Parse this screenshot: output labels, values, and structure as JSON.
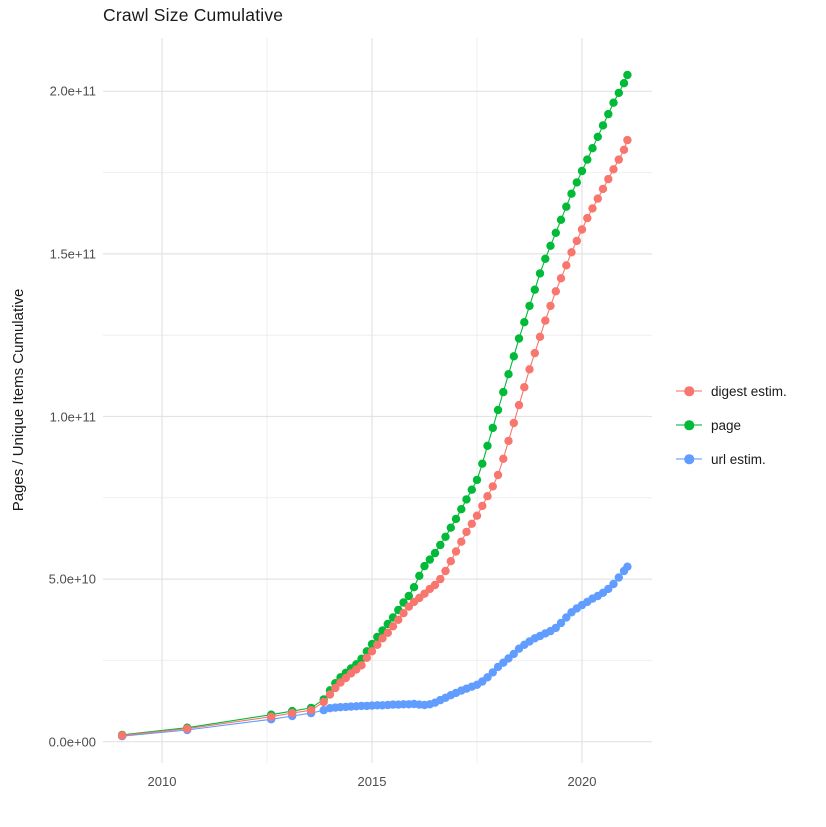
{
  "title": "Crawl Size Cumulative",
  "y_axis": {
    "title": "Pages / Unique Items Cumulative",
    "ticks": [
      {
        "value": 0,
        "label": "0.0e+00"
      },
      {
        "value": 50,
        "label": "5.0e+10"
      },
      {
        "value": 100,
        "label": "1.0e+11"
      },
      {
        "value": 150,
        "label": "1.5e+11"
      },
      {
        "value": 200,
        "label": "2.0e+11"
      }
    ],
    "minor_ticks": [
      25,
      75,
      125,
      175
    ]
  },
  "x_axis": {
    "ticks": [
      {
        "value": 2010,
        "label": "2010"
      },
      {
        "value": 2015,
        "label": "2015"
      },
      {
        "value": 2020,
        "label": "2020"
      }
    ],
    "minor_ticks": [
      2012.5,
      2017.5
    ]
  },
  "legend": {
    "items": [
      {
        "label": "digest estim.",
        "color": "#F8766D"
      },
      {
        "label": "page",
        "color": "#00BA38"
      },
      {
        "label": "url estim.",
        "color": "#619CFF"
      }
    ]
  },
  "colors": {
    "digest": "#F8766D",
    "page": "#00BA38",
    "url": "#619CFF",
    "grid_major": "#e3e3e3",
    "grid_minor": "#efefef",
    "axis_text": "#4d4d4d",
    "title_text": "#1a1a1a",
    "background": "#ffffff"
  },
  "chart_data": {
    "type": "scatter",
    "title": "Crawl Size Cumulative",
    "xlabel": "",
    "ylabel": "Pages / Unique Items Cumulative",
    "value_unit": "1e9 items (values below are in billions)",
    "xlim": [
      2008.6,
      2021.67
    ],
    "ylim_e9": [
      -6.5,
      216.5
    ],
    "grid": true,
    "legend_position": "right",
    "draw_order": [
      "url estim.",
      "page",
      "digest estim."
    ],
    "series": [
      {
        "name": "url estim.",
        "color": "#619CFF",
        "points": [
          [
            2009.05,
            1.7
          ],
          [
            2010.6,
            3.6
          ],
          [
            2012.6,
            6.9
          ],
          [
            2013.1,
            7.9
          ],
          [
            2013.55,
            8.8
          ],
          [
            2013.85,
            9.7
          ],
          [
            2014,
            10.3
          ],
          [
            2014.125,
            10.5
          ],
          [
            2014.25,
            10.6
          ],
          [
            2014.375,
            10.7
          ],
          [
            2014.5,
            10.8
          ],
          [
            2014.625,
            10.9
          ],
          [
            2014.75,
            11
          ],
          [
            2014.875,
            11
          ],
          [
            2015,
            11.1
          ],
          [
            2015.125,
            11.2
          ],
          [
            2015.25,
            11.2
          ],
          [
            2015.375,
            11.3
          ],
          [
            2015.5,
            11.4
          ],
          [
            2015.625,
            11.4
          ],
          [
            2015.75,
            11.5
          ],
          [
            2015.875,
            11.5
          ],
          [
            2016,
            11.6
          ],
          [
            2016.125,
            11.4
          ],
          [
            2016.25,
            11.3
          ],
          [
            2016.375,
            11.5
          ],
          [
            2016.5,
            12
          ],
          [
            2016.625,
            12.8
          ],
          [
            2016.75,
            13.5
          ],
          [
            2016.875,
            14.3
          ],
          [
            2017,
            15
          ],
          [
            2017.125,
            15.7
          ],
          [
            2017.25,
            16.3
          ],
          [
            2017.375,
            16.9
          ],
          [
            2017.5,
            17.5
          ],
          [
            2017.625,
            18.5
          ],
          [
            2017.75,
            19.8
          ],
          [
            2017.875,
            21.3
          ],
          [
            2018,
            23
          ],
          [
            2018.125,
            24.3
          ],
          [
            2018.25,
            25.6
          ],
          [
            2018.375,
            27
          ],
          [
            2018.5,
            28.6
          ],
          [
            2018.625,
            29.8
          ],
          [
            2018.75,
            30.8
          ],
          [
            2018.875,
            31.8
          ],
          [
            2019,
            32.5
          ],
          [
            2019.125,
            33.3
          ],
          [
            2019.25,
            34
          ],
          [
            2019.375,
            35
          ],
          [
            2019.5,
            36.5
          ],
          [
            2019.625,
            38.2
          ],
          [
            2019.75,
            39.8
          ],
          [
            2019.875,
            41
          ],
          [
            2020,
            42
          ],
          [
            2020.125,
            43
          ],
          [
            2020.25,
            44
          ],
          [
            2020.375,
            44.8
          ],
          [
            2020.5,
            45.8
          ],
          [
            2020.625,
            47
          ],
          [
            2020.75,
            48.5
          ],
          [
            2020.875,
            50.5
          ],
          [
            2021,
            52.5
          ],
          [
            2021.08,
            53.8
          ]
        ]
      },
      {
        "name": "page",
        "color": "#00BA38",
        "points": [
          [
            2009.05,
            2.1
          ],
          [
            2010.6,
            4.3
          ],
          [
            2012.6,
            8.3
          ],
          [
            2013.1,
            9.4
          ],
          [
            2013.55,
            10.4
          ],
          [
            2013.85,
            13
          ],
          [
            2014,
            15.8
          ],
          [
            2014.125,
            18
          ],
          [
            2014.25,
            19.8
          ],
          [
            2014.375,
            21.2
          ],
          [
            2014.5,
            22.5
          ],
          [
            2014.625,
            23.8
          ],
          [
            2014.75,
            25.5
          ],
          [
            2014.875,
            27.8
          ],
          [
            2015,
            30
          ],
          [
            2015.125,
            32.2
          ],
          [
            2015.25,
            34.2
          ],
          [
            2015.375,
            36.2
          ],
          [
            2015.5,
            38.2
          ],
          [
            2015.625,
            40.5
          ],
          [
            2015.75,
            42.8
          ],
          [
            2015.875,
            44.8
          ],
          [
            2016,
            47.5
          ],
          [
            2016.125,
            51
          ],
          [
            2016.25,
            54
          ],
          [
            2016.375,
            56
          ],
          [
            2016.5,
            58
          ],
          [
            2016.625,
            60.5
          ],
          [
            2016.75,
            63
          ],
          [
            2016.875,
            65.8
          ],
          [
            2017,
            68.5
          ],
          [
            2017.125,
            71.5
          ],
          [
            2017.25,
            74.5
          ],
          [
            2017.375,
            77.5
          ],
          [
            2017.5,
            80.5
          ],
          [
            2017.625,
            85.5
          ],
          [
            2017.75,
            91
          ],
          [
            2017.875,
            96.5
          ],
          [
            2018,
            102
          ],
          [
            2018.125,
            107.5
          ],
          [
            2018.25,
            113
          ],
          [
            2018.375,
            118.5
          ],
          [
            2018.5,
            124
          ],
          [
            2018.625,
            129
          ],
          [
            2018.75,
            134
          ],
          [
            2018.875,
            139
          ],
          [
            2019,
            144
          ],
          [
            2019.125,
            148.5
          ],
          [
            2019.25,
            152.5
          ],
          [
            2019.375,
            156.5
          ],
          [
            2019.5,
            160.5
          ],
          [
            2019.625,
            164.5
          ],
          [
            2019.75,
            168.5
          ],
          [
            2019.875,
            172
          ],
          [
            2020,
            175.5
          ],
          [
            2020.125,
            179
          ],
          [
            2020.25,
            182.5
          ],
          [
            2020.375,
            186
          ],
          [
            2020.5,
            189.5
          ],
          [
            2020.625,
            193
          ],
          [
            2020.75,
            196.5
          ],
          [
            2020.875,
            199.5
          ],
          [
            2021,
            202.5
          ],
          [
            2021.08,
            205
          ]
        ]
      },
      {
        "name": "digest estim.",
        "color": "#F8766D",
        "points": [
          [
            2009.05,
            1.9
          ],
          [
            2010.6,
            4
          ],
          [
            2012.6,
            7.7
          ],
          [
            2013.1,
            8.8
          ],
          [
            2013.55,
            9.7
          ],
          [
            2013.85,
            12.2
          ],
          [
            2014,
            14.5
          ],
          [
            2014.125,
            16.5
          ],
          [
            2014.25,
            18.2
          ],
          [
            2014.375,
            19.6
          ],
          [
            2014.5,
            21
          ],
          [
            2014.625,
            22.2
          ],
          [
            2014.75,
            23.5
          ],
          [
            2014.875,
            25.8
          ],
          [
            2015,
            27.8
          ],
          [
            2015.125,
            29.8
          ],
          [
            2015.25,
            31.8
          ],
          [
            2015.375,
            33.5
          ],
          [
            2015.5,
            35.5
          ],
          [
            2015.625,
            37.5
          ],
          [
            2015.75,
            39.5
          ],
          [
            2015.875,
            41.5
          ],
          [
            2016,
            43
          ],
          [
            2016.125,
            44.2
          ],
          [
            2016.25,
            45.5
          ],
          [
            2016.375,
            47
          ],
          [
            2016.5,
            48.2
          ],
          [
            2016.625,
            50
          ],
          [
            2016.75,
            52.5
          ],
          [
            2016.875,
            55.5
          ],
          [
            2017,
            58.5
          ],
          [
            2017.125,
            61.5
          ],
          [
            2017.25,
            64.5
          ],
          [
            2017.375,
            67
          ],
          [
            2017.5,
            69.5
          ],
          [
            2017.625,
            72.5
          ],
          [
            2017.75,
            75.5
          ],
          [
            2017.875,
            78.5
          ],
          [
            2018,
            82
          ],
          [
            2018.125,
            87
          ],
          [
            2018.25,
            92.5
          ],
          [
            2018.375,
            98
          ],
          [
            2018.5,
            103.5
          ],
          [
            2018.625,
            109
          ],
          [
            2018.75,
            114.5
          ],
          [
            2018.875,
            119.5
          ],
          [
            2019,
            124.5
          ],
          [
            2019.125,
            129.5
          ],
          [
            2019.25,
            134
          ],
          [
            2019.375,
            138.5
          ],
          [
            2019.5,
            142.5
          ],
          [
            2019.625,
            146.5
          ],
          [
            2019.75,
            150.5
          ],
          [
            2019.875,
            154
          ],
          [
            2020,
            157.5
          ],
          [
            2020.125,
            161
          ],
          [
            2020.25,
            164
          ],
          [
            2020.375,
            167
          ],
          [
            2020.5,
            170
          ],
          [
            2020.625,
            173
          ],
          [
            2020.75,
            176
          ],
          [
            2020.875,
            179
          ],
          [
            2021,
            182
          ],
          [
            2021.08,
            185
          ]
        ]
      }
    ]
  }
}
